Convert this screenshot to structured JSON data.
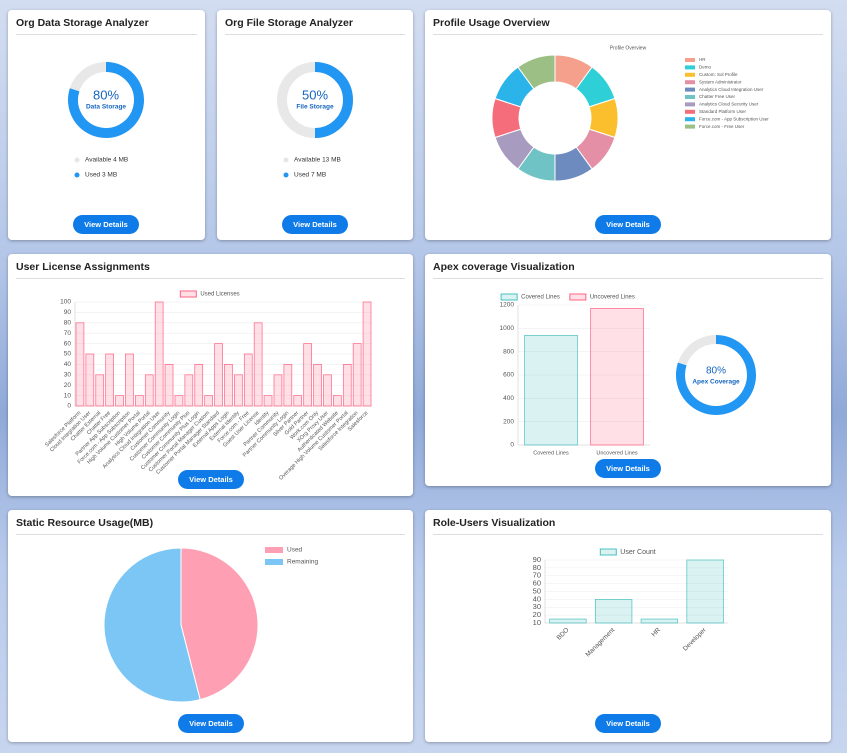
{
  "data_storage": {
    "title": "Org Data Storage Analyzer",
    "gauge": {
      "value": 80,
      "label": "80%",
      "caption": "Data Storage"
    },
    "legend": [
      {
        "label": "Available 4 MB",
        "color": "#e6e6e6"
      },
      {
        "label": "Used 3 MB",
        "color": "#2196f3"
      }
    ],
    "button": "View Details"
  },
  "file_storage": {
    "title": "Org File Storage Analyzer",
    "gauge": {
      "value": 50,
      "label": "50%",
      "caption": "File Storage"
    },
    "legend": [
      {
        "label": "Available 13 MB",
        "color": "#e6e6e6"
      },
      {
        "label": "Used 7 MB",
        "color": "#2196f3"
      }
    ],
    "button": "View Details"
  },
  "profile_usage": {
    "title": "Profile Usage Overview",
    "chart": {
      "type": "doughnut",
      "title": "Profile Overview",
      "categories": [
        "HR",
        "Demo",
        "Custom: Sol Profile",
        "System Administrator",
        "Analytics Cloud Integration User",
        "Chatter Free User",
        "Analytics Cloud Security User",
        "Standard Platform User",
        "Force.com - App Subscription User",
        "Force.com - Free User"
      ],
      "values": [
        1,
        1,
        1,
        1,
        1,
        1,
        1,
        1,
        1,
        1
      ],
      "colors": [
        "#f4a08c",
        "#2ecfd6",
        "#fbbf2d",
        "#e58fa6",
        "#6e8bc0",
        "#6fc3c5",
        "#a79bbf",
        "#f56c7b",
        "#2bb4ea",
        "#9bbf85"
      ]
    },
    "button": "View Details"
  },
  "user_licenses": {
    "title": "User License Assignments",
    "chart": {
      "type": "bar",
      "categories": [
        "Salesforce Platform",
        "Cloud Integration User",
        "Chatter External",
        "Chatter Free",
        "Partner App Subscription",
        "Force.com - App Subscription",
        "High Volume Customer Portal",
        "High Volume Portal",
        "Analytics Cloud Integration User",
        "Customer Community",
        "Customer Community Login",
        "Customer Community Plus",
        "Customer Community Plus Login",
        "Customer Portal Manager Custom",
        "Customer Portal Manager Standard",
        "External Apps Login",
        "External Identity",
        "Force.com - Free",
        "Guest User License",
        "Identity",
        "Partner Community",
        "Partner Community Login",
        "Silver Partner",
        "Gold Partner",
        "Work.com Only",
        "XOrg Proxy User",
        "Authenticated Website",
        "Overage High Volume Customer Portal",
        "Salesforce Integration",
        "Salesforce"
      ],
      "series": [
        {
          "name": "Used Licenses",
          "color": "#ff6384",
          "values": [
            80,
            50,
            30,
            50,
            10,
            50,
            10,
            30,
            100,
            40,
            10,
            30,
            40,
            10,
            60,
            40,
            30,
            50,
            80,
            10,
            30,
            40,
            10,
            60,
            40,
            30,
            10,
            40,
            60,
            100
          ]
        }
      ],
      "ylim": [
        0,
        100
      ],
      "yticks": [
        0,
        10,
        20,
        30,
        40,
        50,
        60,
        70,
        80,
        90,
        100
      ]
    },
    "button": "View Details"
  },
  "apex_coverage": {
    "title": "Apex coverage Visualization",
    "chart": {
      "type": "bar",
      "categories": [
        "Covered Lines",
        "Uncovered Lines"
      ],
      "series": [
        {
          "name": "Covered Lines",
          "color": "#4bc0c0",
          "values": [
            940,
            null
          ]
        },
        {
          "name": "Uncovered Lines",
          "color": "#ff6384",
          "values": [
            null,
            1170
          ]
        }
      ],
      "ylim": [
        0,
        1200
      ],
      "yticks": [
        0,
        200,
        400,
        600,
        800,
        1000,
        1200
      ]
    },
    "gauge": {
      "value": 80,
      "label": "80%",
      "caption": "Apex Coverage"
    },
    "button": "View Details"
  },
  "static_resource": {
    "title": "Static Resource Usage(MB)",
    "chart": {
      "type": "pie",
      "categories": [
        "Used",
        "Remaining"
      ],
      "values": [
        46,
        54
      ],
      "colors": [
        "#ff9fb3",
        "#7cc6f5"
      ]
    },
    "button": "View Details"
  },
  "role_users": {
    "title": "Role-Users Visualization",
    "chart": {
      "type": "bar",
      "categories": [
        "BDO",
        "Management",
        "HR",
        "Developer"
      ],
      "series": [
        {
          "name": "User Count",
          "color": "#4bc0c0",
          "values": [
            15,
            40,
            15,
            90
          ]
        }
      ],
      "ylim": [
        10,
        90
      ],
      "yticks": [
        10,
        20,
        30,
        40,
        50,
        60,
        70,
        80,
        90
      ]
    },
    "button": "View Details"
  }
}
